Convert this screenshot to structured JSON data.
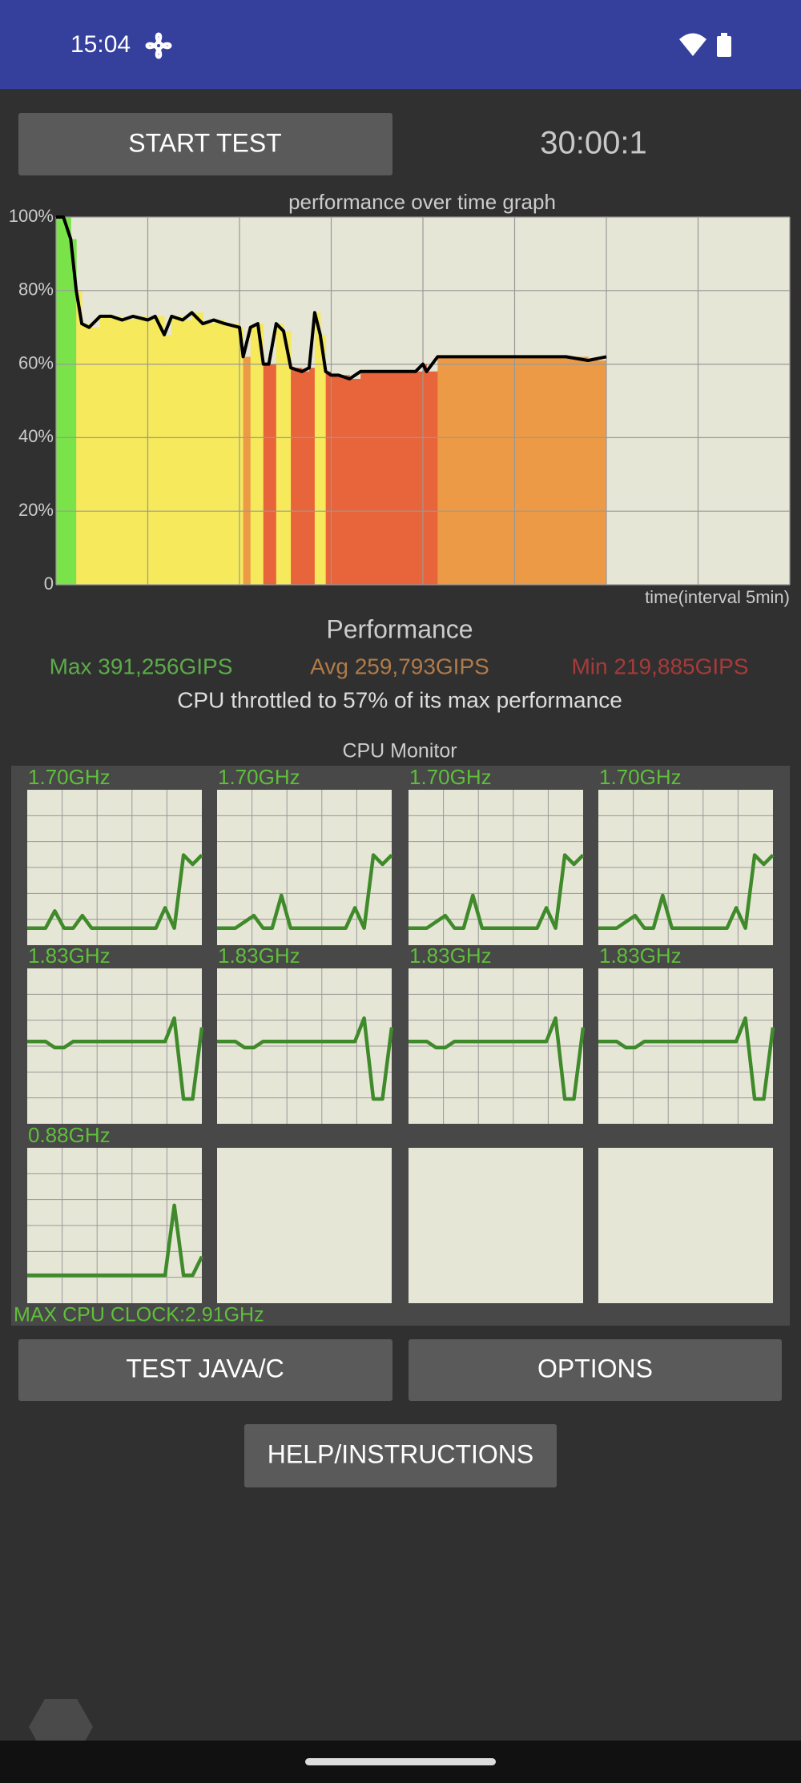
{
  "status_bar": {
    "time": "15:04"
  },
  "controls": {
    "start_button": "START TEST",
    "timer": "30:00:1",
    "java_button": "TEST JAVA/C",
    "options_button": "OPTIONS",
    "help_button": "HELP/INSTRUCTIONS"
  },
  "chart_data": {
    "type": "line",
    "title": "performance over time graph",
    "x_label": "time(interval 5min)",
    "x": [
      0,
      0.4,
      0.8,
      1.1,
      1.4,
      1.8,
      2.4,
      3,
      3.6,
      4.2,
      5,
      5.4,
      5.9,
      6.3,
      6.9,
      7.4,
      8,
      8.6,
      9.2,
      10,
      10.2,
      10.6,
      11,
      11.3,
      11.6,
      12,
      12.4,
      12.8,
      13.4,
      13.8,
      14.1,
      14.4,
      14.7,
      15,
      15.4,
      16,
      16.6,
      17.5,
      18.4,
      19.6,
      20,
      20.2,
      20.8,
      22,
      23.8,
      25,
      26.6,
      27.8,
      29,
      30
    ],
    "values": [
      100,
      100,
      94,
      80,
      71,
      70,
      73,
      73,
      72,
      73,
      72,
      73,
      68,
      73,
      72,
      74,
      71,
      72,
      71,
      70,
      62,
      70,
      71,
      60,
      60,
      71,
      69,
      59,
      58,
      59,
      74,
      68,
      58,
      57,
      57,
      56,
      58,
      58,
      58,
      58,
      60,
      58,
      62,
      62,
      62,
      62,
      62,
      62,
      61,
      62
    ],
    "color": "#000000",
    "xlim": [
      0,
      40
    ],
    "xticks": [
      0,
      5,
      10,
      15,
      20,
      25,
      30,
      35,
      40
    ],
    "ylim": [
      0,
      100
    ],
    "yticks": [
      0,
      {
        "value": 20,
        "label": "20%"
      },
      {
        "value": 40,
        "label": "40%"
      },
      {
        "value": 60,
        "label": "60%"
      },
      {
        "value": 80,
        "label": "80%"
      },
      {
        "value": 100,
        "label": "100%"
      }
    ],
    "grid": true
  },
  "performance": {
    "title": "Performance",
    "max": "Max 391,256GIPS",
    "avg": "Avg 259,793GIPS",
    "min": "Min 219,885GIPS",
    "summary": "CPU throttled to 57% of its max performance"
  },
  "cpu_monitor": {
    "title": "CPU Monitor",
    "ylim": [
      0,
      100
    ],
    "color": "#3f8a2a",
    "cores": [
      {
        "label": "1.70GHz",
        "values": [
          11,
          11,
          11,
          22,
          11,
          11,
          19,
          11,
          11,
          11,
          11,
          11,
          11,
          11,
          11,
          24,
          11,
          58,
          52,
          58
        ]
      },
      {
        "label": "1.70GHz",
        "values": [
          11,
          11,
          11,
          15,
          19,
          11,
          11,
          32,
          11,
          11,
          11,
          11,
          11,
          11,
          11,
          24,
          11,
          58,
          52,
          58
        ]
      },
      {
        "label": "1.70GHz",
        "values": [
          11,
          11,
          11,
          15,
          19,
          11,
          11,
          32,
          11,
          11,
          11,
          11,
          11,
          11,
          11,
          24,
          11,
          58,
          52,
          58
        ]
      },
      {
        "label": "1.70GHz",
        "values": [
          11,
          11,
          11,
          15,
          19,
          11,
          11,
          32,
          11,
          11,
          11,
          11,
          11,
          11,
          11,
          24,
          11,
          58,
          52,
          58
        ]
      },
      {
        "label": "1.83GHz",
        "values": [
          53,
          53,
          53,
          49,
          49,
          53,
          53,
          53,
          53,
          53,
          53,
          53,
          53,
          53,
          53,
          53,
          68,
          16,
          16,
          62
        ]
      },
      {
        "label": "1.83GHz",
        "values": [
          53,
          53,
          53,
          49,
          49,
          53,
          53,
          53,
          53,
          53,
          53,
          53,
          53,
          53,
          53,
          53,
          68,
          16,
          16,
          62
        ]
      },
      {
        "label": "1.83GHz",
        "values": [
          53,
          53,
          53,
          49,
          49,
          53,
          53,
          53,
          53,
          53,
          53,
          53,
          53,
          53,
          53,
          53,
          68,
          16,
          16,
          62
        ]
      },
      {
        "label": "1.83GHz",
        "values": [
          53,
          53,
          53,
          49,
          49,
          53,
          53,
          53,
          53,
          53,
          53,
          53,
          53,
          53,
          53,
          53,
          68,
          16,
          16,
          62
        ]
      },
      {
        "label": "0.88GHz",
        "values": [
          18,
          18,
          18,
          18,
          18,
          18,
          18,
          18,
          18,
          18,
          18,
          18,
          18,
          18,
          18,
          18,
          63,
          18,
          18,
          30
        ]
      }
    ],
    "max_clock": "MAX CPU CLOCK:2.91GHz"
  }
}
